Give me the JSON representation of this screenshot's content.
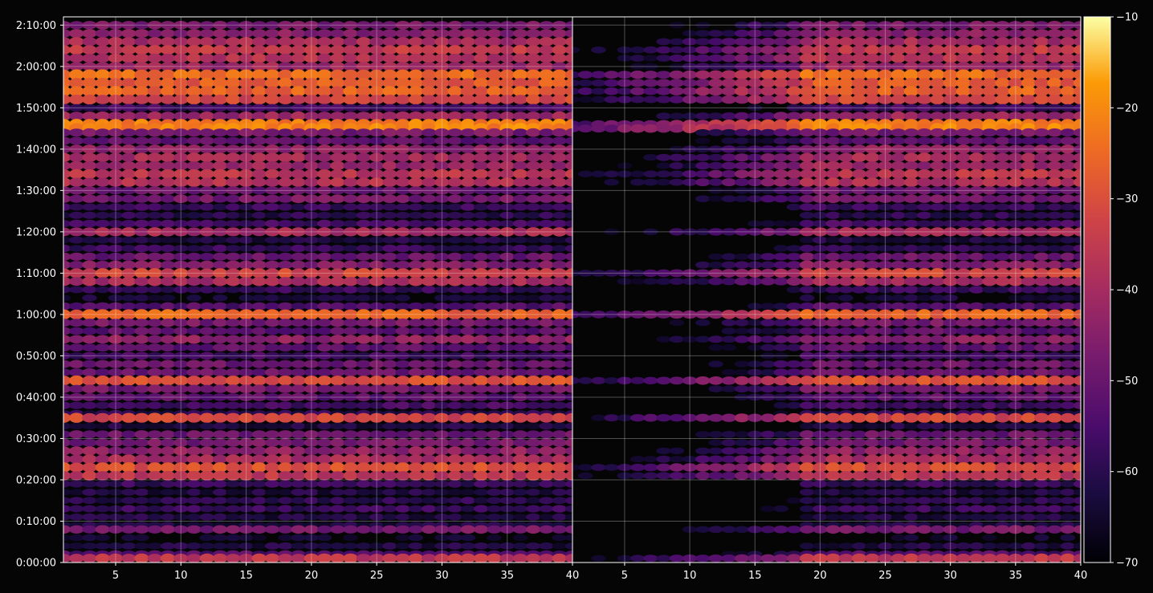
{
  "chart_data": {
    "type": "heatmap",
    "title": "",
    "xlabel": "",
    "ylabel": "",
    "grid": true,
    "background": "#050505",
    "colormap": "inferno",
    "panels": [
      {
        "name": "left",
        "xlim": [
          1,
          40
        ],
        "x_ticks": [
          5,
          10,
          15,
          20,
          25,
          30,
          35,
          40
        ],
        "x_tick_labels": [
          "5",
          "10",
          "15",
          "20",
          "25",
          "30",
          "35",
          "40"
        ]
      },
      {
        "name": "right",
        "xlim": [
          1,
          40
        ],
        "x_ticks": [
          5,
          10,
          15,
          20,
          25,
          30,
          35,
          40
        ],
        "x_tick_labels": [
          "5",
          "10",
          "15",
          "20",
          "25",
          "30",
          "35",
          "40"
        ]
      }
    ],
    "y_axis": {
      "unit": "seconds",
      "ylim": [
        0,
        7920
      ],
      "ticks": [
        0,
        600,
        1200,
        1800,
        2400,
        3000,
        3600,
        4200,
        4800,
        5400,
        6000,
        6600,
        7200,
        7800
      ],
      "tick_labels": [
        "0:00:00",
        "0:10:00",
        "0:20:00",
        "0:30:00",
        "0:40:00",
        "0:50:00",
        "1:00:00",
        "1:10:00",
        "1:20:00",
        "1:30:00",
        "1:40:00",
        "1:50:00",
        "2:00:00",
        "2:10:00"
      ]
    },
    "colorbar": {
      "range": [
        -70,
        -10
      ],
      "ticks": [
        -70,
        -60,
        -50,
        -40,
        -30,
        -20,
        -10
      ],
      "tick_labels": [
        "−70",
        "−60",
        "−50",
        "−40",
        "−30",
        "−20",
        "−10"
      ]
    },
    "row_bands": [
      {
        "t": 7800,
        "level": -48
      },
      {
        "t": 7680,
        "level": -45
      },
      {
        "t": 7560,
        "level": -40
      },
      {
        "t": 7440,
        "level": -35
      },
      {
        "t": 7320,
        "level": -38
      },
      {
        "t": 7200,
        "level": -42
      },
      {
        "t": 7080,
        "level": -25
      },
      {
        "t": 6960,
        "level": -28
      },
      {
        "t": 6840,
        "level": -27
      },
      {
        "t": 6720,
        "level": -32
      },
      {
        "t": 6600,
        "level": -56
      },
      {
        "t": 6480,
        "level": -42
      },
      {
        "t": 6360,
        "level": -22
      },
      {
        "t": 6300,
        "level": -21
      },
      {
        "t": 6240,
        "level": -48
      },
      {
        "t": 6120,
        "level": -52
      },
      {
        "t": 6000,
        "level": -44
      },
      {
        "t": 5880,
        "level": -40
      },
      {
        "t": 5760,
        "level": -42
      },
      {
        "t": 5640,
        "level": -36
      },
      {
        "t": 5520,
        "level": -38
      },
      {
        "t": 5400,
        "level": -50
      },
      {
        "t": 5280,
        "level": -48
      },
      {
        "t": 5160,
        "level": -58
      },
      {
        "t": 5040,
        "level": -60
      },
      {
        "t": 4920,
        "level": -56
      },
      {
        "t": 4800,
        "level": -40
      },
      {
        "t": 4680,
        "level": -62
      },
      {
        "t": 4560,
        "level": -58
      },
      {
        "t": 4440,
        "level": -50
      },
      {
        "t": 4320,
        "level": -46
      },
      {
        "t": 4200,
        "level": -32
      },
      {
        "t": 4080,
        "level": -40
      },
      {
        "t": 3960,
        "level": -58
      },
      {
        "t": 3840,
        "level": -64
      },
      {
        "t": 3720,
        "level": -54
      },
      {
        "t": 3600,
        "level": -26
      },
      {
        "t": 3480,
        "level": -48
      },
      {
        "t": 3360,
        "level": -52
      },
      {
        "t": 3240,
        "level": -44
      },
      {
        "t": 3120,
        "level": -52
      },
      {
        "t": 3000,
        "level": -56
      },
      {
        "t": 2880,
        "level": -50
      },
      {
        "t": 2760,
        "level": -50
      },
      {
        "t": 2640,
        "level": -30
      },
      {
        "t": 2520,
        "level": -48
      },
      {
        "t": 2400,
        "level": -52
      },
      {
        "t": 2280,
        "level": -56
      },
      {
        "t": 2160,
        "level": -60
      },
      {
        "t": 2100,
        "level": -32
      },
      {
        "t": 1980,
        "level": -62
      },
      {
        "t": 1860,
        "level": -50
      },
      {
        "t": 1740,
        "level": -48
      },
      {
        "t": 1620,
        "level": -44
      },
      {
        "t": 1500,
        "level": -40
      },
      {
        "t": 1380,
        "level": -30
      },
      {
        "t": 1260,
        "level": -36
      },
      {
        "t": 1140,
        "level": -58
      },
      {
        "t": 1020,
        "level": -62
      },
      {
        "t": 900,
        "level": -60
      },
      {
        "t": 780,
        "level": -58
      },
      {
        "t": 660,
        "level": -62
      },
      {
        "t": 540,
        "level": -62
      },
      {
        "t": 480,
        "level": -48
      },
      {
        "t": 360,
        "level": -66
      },
      {
        "t": 240,
        "level": -62
      },
      {
        "t": 120,
        "level": -54
      },
      {
        "t": 60,
        "level": -36
      }
    ]
  }
}
